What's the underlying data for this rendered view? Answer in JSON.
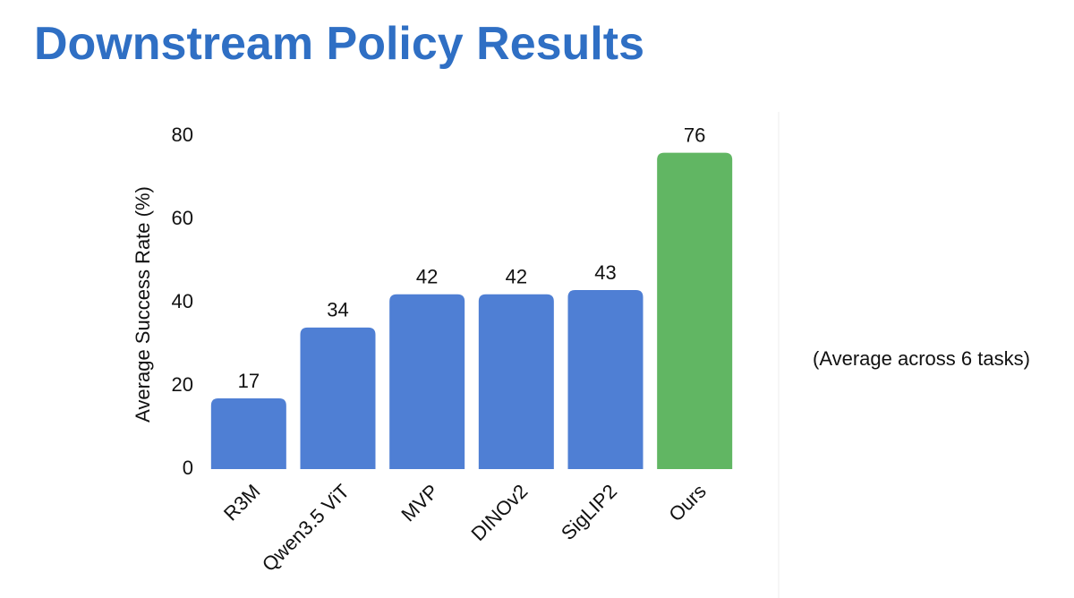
{
  "chart_data": {
    "type": "bar",
    "title": "Downstream Policy Results",
    "y_label": "Average Success Rate (%)",
    "annotation": "(Average across 6 tasks)",
    "categories": [
      "R3M",
      "Qwen3.5 ViT",
      "MVP",
      "DINOv2",
      "SigLIP2",
      "Ours"
    ],
    "values": [
      17,
      34,
      42,
      42,
      43,
      76
    ],
    "colors": [
      "#4f7fd4",
      "#4f7fd4",
      "#4f7fd4",
      "#4f7fd4",
      "#4f7fd4",
      "#61b663"
    ],
    "ylim": [
      0,
      80
    ],
    "yticks": [
      0,
      20,
      40,
      60,
      80
    ],
    "grid": false
  }
}
